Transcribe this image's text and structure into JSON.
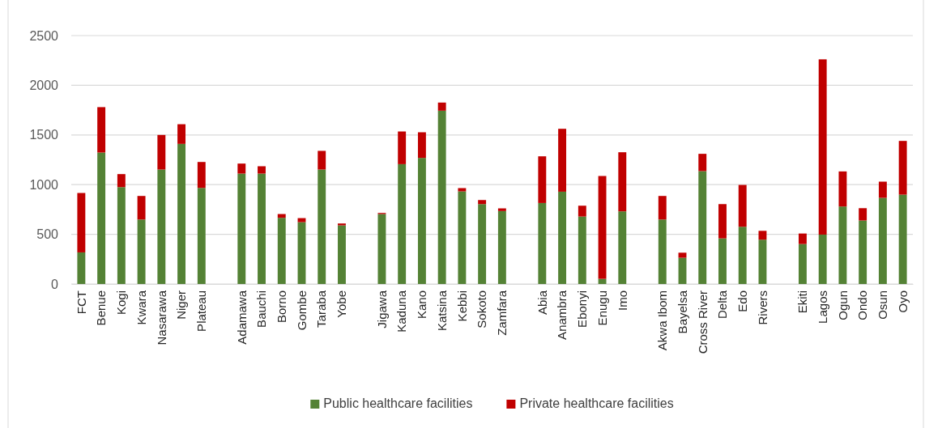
{
  "chart_data": {
    "type": "bar",
    "stacked": true,
    "categories": [
      "FCT",
      "Benue",
      "Kogi",
      "Kwara",
      "Nasarawa",
      "Niger",
      "Plateau",
      null,
      "Adamawa",
      "Bauchi",
      "Borno",
      "Gombe",
      "Taraba",
      "Yobe",
      null,
      "Jigawa",
      "Kaduna",
      "Kano",
      "Katsina",
      "Kebbi",
      "Sokoto",
      "Zamfara",
      null,
      "Abia",
      "Anambra",
      "Ebonyi",
      "Enugu",
      "Imo",
      null,
      "Akwa Ibom",
      "Bayelsa",
      "Cross River",
      "Delta",
      "Edo",
      "Rivers",
      null,
      "Ekiti",
      "Lagos",
      "Ogun",
      "Ondo",
      "Osun",
      "Oyo"
    ],
    "series": [
      {
        "name": "Public healthcare facilities",
        "color": "#548235",
        "values": [
          318,
          1323,
          975,
          649,
          1152,
          1410,
          967,
          null,
          1111,
          1111,
          666,
          622,
          1152,
          590,
          null,
          704,
          1206,
          1269,
          1744,
          932,
          804,
          734,
          null,
          815,
          929,
          679,
          52,
          731,
          null,
          649,
          264,
          1136,
          459,
          576,
          446,
          null,
          402,
          497,
          780,
          639,
          867,
          899
        ]
      },
      {
        "name": "Private healthcare facilities",
        "color": "#c00000",
        "values": [
          598,
          457,
          131,
          237,
          348,
          198,
          261,
          null,
          101,
          74,
          38,
          41,
          188,
          19,
          null,
          11,
          329,
          258,
          82,
          33,
          41,
          27,
          null,
          470,
          633,
          109,
          1035,
          595,
          null,
          237,
          51,
          174,
          345,
          421,
          89,
          null,
          106,
          1764,
          353,
          124,
          163,
          541
        ]
      }
    ],
    "ylim": [
      0,
      2500
    ],
    "yticks": [
      0,
      500,
      1000,
      1500,
      2000,
      2500
    ],
    "grid": "y",
    "legend": "bottom"
  }
}
